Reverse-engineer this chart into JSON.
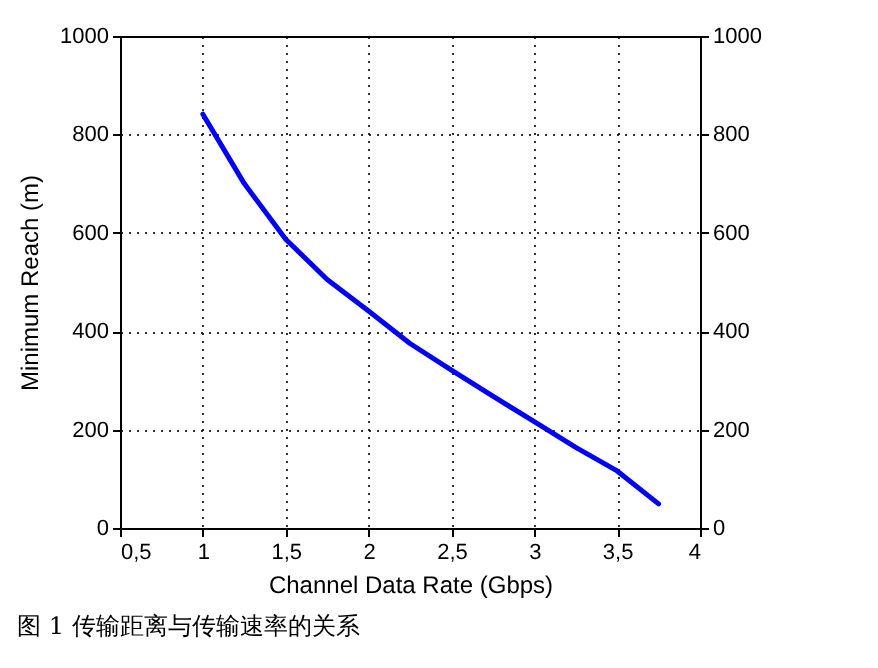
{
  "chart_data": {
    "type": "line",
    "xlabel": "Channel Data Rate (Gbps)",
    "ylabel": "Minimum Reach (m)",
    "x": [
      1,
      1.25,
      1.5,
      1.75,
      2,
      2.25,
      2.5,
      2.75,
      3,
      3.25,
      3.5,
      3.75
    ],
    "series": [
      {
        "color": "#0000ff",
        "values": [
          841,
          700,
          587,
          505,
          441,
          375,
          321,
          268,
          216,
          164,
          116,
          49
        ]
      }
    ],
    "xlim": [
      0.5,
      4
    ],
    "xticks": [
      {
        "value": 0.5,
        "label": "0,5"
      },
      1,
      {
        "value": 1.5,
        "label": "1,5"
      },
      2,
      {
        "value": 2.5,
        "label": "2,5"
      },
      3,
      {
        "value": 3.5,
        "label": "3,5"
      },
      4
    ],
    "ylim": [
      0,
      1000
    ],
    "yticks": [
      0,
      200,
      400,
      600,
      800,
      1000
    ],
    "y2lim": [
      0,
      1000
    ],
    "y2ticks": [
      0,
      200,
      400,
      600,
      800,
      1000
    ],
    "grid": true,
    "line_style": "solid",
    "marker": "none",
    "annotations": [
      "图 1 传输距离与传输速率的关系"
    ]
  }
}
